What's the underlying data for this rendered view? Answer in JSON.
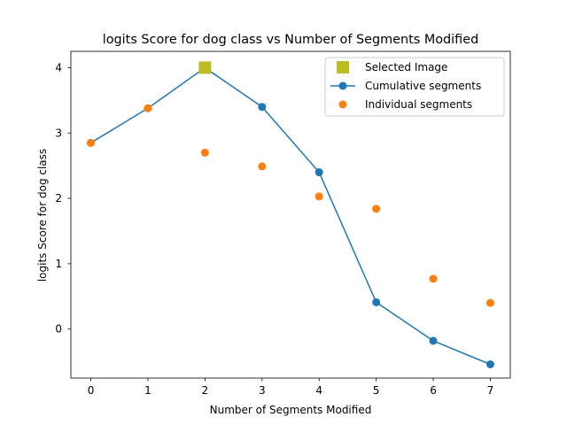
{
  "chart_data": {
    "type": "line",
    "title": "logits Score for dog class vs Number of Segments Modified",
    "xlabel": "Number of Segments Modified",
    "ylabel": "logits Score for dog class",
    "xlim": [
      -0.35,
      7.35
    ],
    "ylim": [
      -0.75,
      4.25
    ],
    "xticks": [
      0,
      1,
      2,
      3,
      4,
      5,
      6,
      7
    ],
    "yticks": [
      0,
      1,
      2,
      3,
      4
    ],
    "grid": false,
    "legend_position": "top-right",
    "series": [
      {
        "name": "Selected Image",
        "kind": "marker-square",
        "color": "#bcbd22",
        "points": [
          [
            2,
            4.0
          ]
        ]
      },
      {
        "name": "Cumulative segments",
        "kind": "line-with-markers",
        "color": "#1f77b4",
        "points": [
          [
            0,
            2.85
          ],
          [
            1,
            3.38
          ],
          [
            2,
            4.0
          ],
          [
            3,
            3.4
          ],
          [
            4,
            2.4
          ],
          [
            5,
            0.41
          ],
          [
            6,
            -0.18
          ],
          [
            7,
            -0.54
          ]
        ]
      },
      {
        "name": "Individual segments",
        "kind": "marker-circle",
        "color": "#ff7f0e",
        "points": [
          [
            0,
            2.85
          ],
          [
            1,
            3.38
          ],
          [
            2,
            2.7
          ],
          [
            3,
            2.49
          ],
          [
            4,
            2.03
          ],
          [
            5,
            1.84
          ],
          [
            6,
            0.77
          ],
          [
            7,
            0.4
          ]
        ]
      }
    ]
  }
}
